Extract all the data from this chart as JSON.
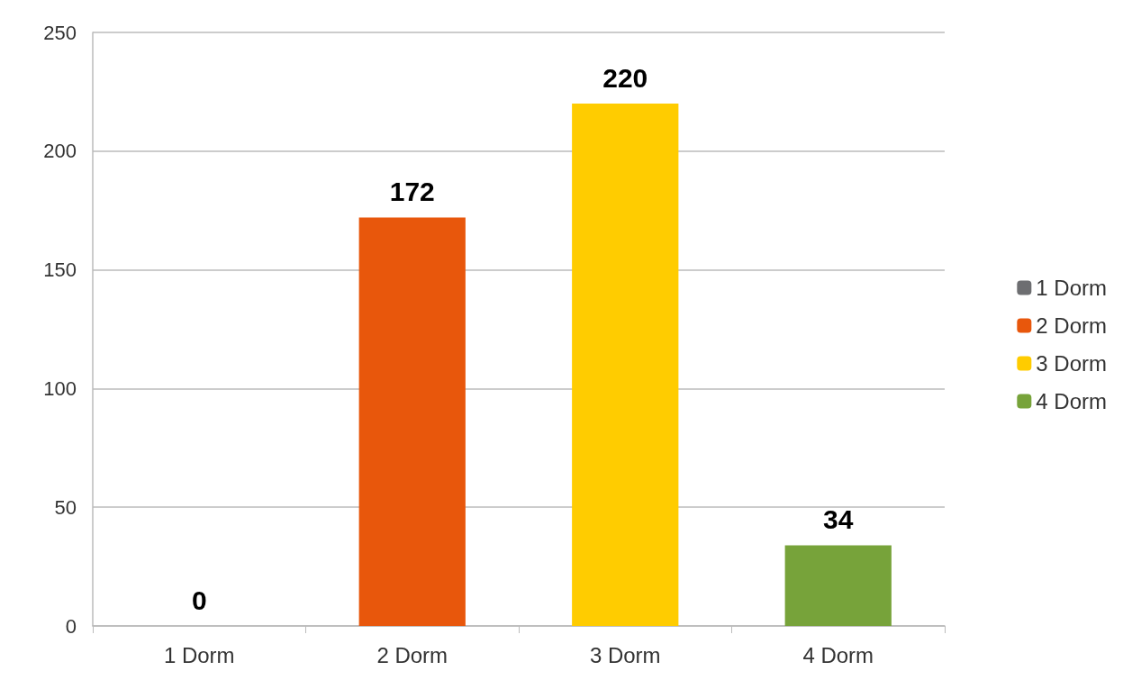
{
  "chart_data": {
    "type": "bar",
    "categories": [
      "1 Dorm",
      "2 Dorm",
      "3 Dorm",
      "4 Dorm"
    ],
    "series": [
      {
        "name": "1 Dorm",
        "color": "#6d6e71",
        "values": [
          0,
          null,
          null,
          null
        ]
      },
      {
        "name": "2 Dorm",
        "color": "#e8570c",
        "values": [
          null,
          172,
          null,
          null
        ]
      },
      {
        "name": "3 Dorm",
        "color": "#ffcc00",
        "values": [
          null,
          null,
          220,
          null
        ]
      },
      {
        "name": "4 Dorm",
        "color": "#77a33a",
        "values": [
          null,
          null,
          null,
          34
        ]
      }
    ],
    "ylim": [
      0,
      250
    ],
    "yticks": [
      0,
      50,
      100,
      150,
      200,
      250
    ],
    "grid": "y",
    "legend": "right",
    "data_labels": true
  }
}
